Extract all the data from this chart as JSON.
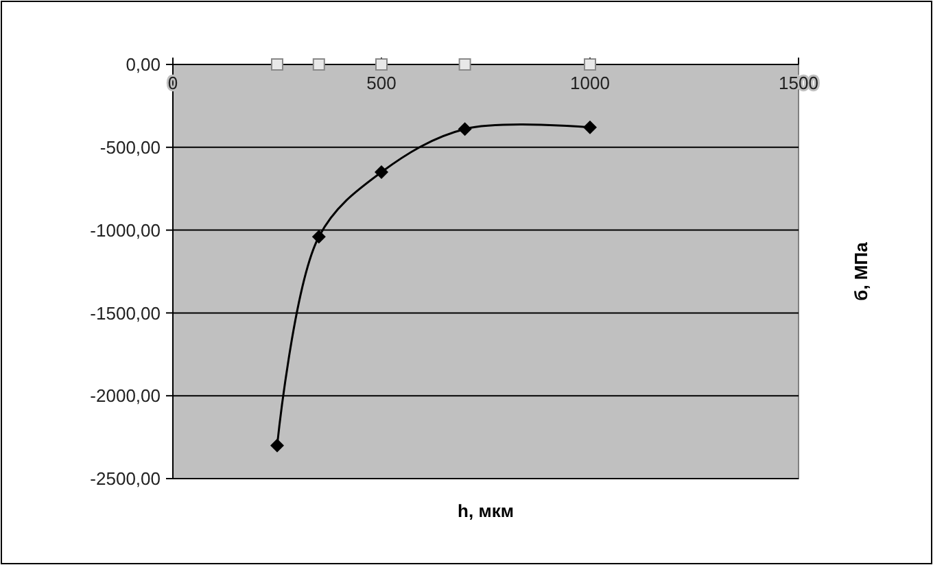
{
  "chart_data": {
    "type": "line",
    "xlabel": "h, мкм",
    "ylabel": "б, МПа",
    "x": [
      250,
      350,
      500,
      700,
      1000
    ],
    "series": [
      {
        "color": "#000000",
        "marker": "diamond",
        "values": [
          -2300,
          -1040,
          -650,
          -390,
          -380
        ]
      },
      {
        "type": "scatter",
        "color": "#e8e8e8",
        "marker": "square",
        "values": [
          0,
          0,
          0,
          0,
          0
        ]
      }
    ],
    "xlim": [
      0,
      1500
    ],
    "xticks": [
      0,
      500,
      1000,
      1500
    ],
    "ylim": [
      -2500,
      0
    ],
    "yticks": [
      {
        "value": 0,
        "label": "0,00"
      },
      {
        "value": -500,
        "label": "-500,00"
      },
      {
        "value": -1000,
        "label": "-1000,00"
      },
      {
        "value": -1500,
        "label": "-1500,00"
      },
      {
        "value": -2000,
        "label": "-2000,00"
      },
      {
        "value": -2500,
        "label": "-2500,00"
      }
    ],
    "grid": "y"
  }
}
